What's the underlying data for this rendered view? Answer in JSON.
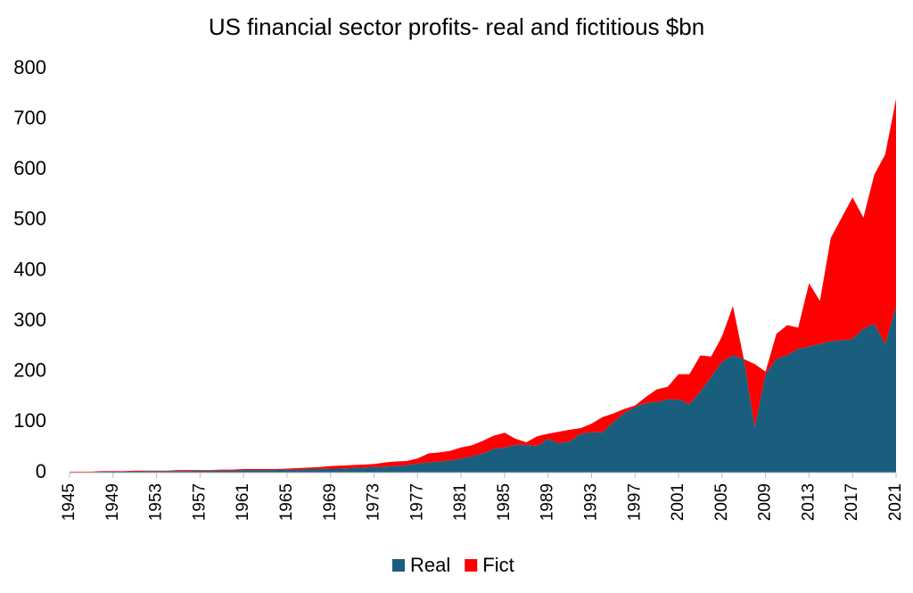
{
  "chart_data": {
    "type": "stacked-area",
    "title": "US financial sector profits- real and fictitious $bn",
    "x": [
      1945,
      1946,
      1947,
      1948,
      1949,
      1950,
      1951,
      1952,
      1953,
      1954,
      1955,
      1956,
      1957,
      1958,
      1959,
      1960,
      1961,
      1962,
      1963,
      1964,
      1965,
      1966,
      1967,
      1968,
      1969,
      1970,
      1971,
      1972,
      1973,
      1974,
      1975,
      1976,
      1977,
      1978,
      1979,
      1980,
      1981,
      1982,
      1983,
      1984,
      1985,
      1986,
      1987,
      1988,
      1989,
      1990,
      1991,
      1992,
      1993,
      1994,
      1995,
      1996,
      1997,
      1998,
      1999,
      2000,
      2001,
      2002,
      2003,
      2004,
      2005,
      2006,
      2007,
      2008,
      2009,
      2010,
      2011,
      2012,
      2013,
      2014,
      2015,
      2016,
      2017,
      2018,
      2019,
      2020,
      2021
    ],
    "series": [
      {
        "name": "Real",
        "color": "#1a5e7e",
        "values": [
          1,
          1,
          1,
          2,
          2,
          2,
          2,
          3,
          3,
          3,
          3,
          3,
          4,
          4,
          4,
          4,
          5,
          5,
          5,
          5,
          6,
          6,
          7,
          7,
          8,
          8,
          9,
          10,
          11,
          12,
          13,
          15,
          18,
          20,
          22,
          24,
          28,
          32,
          38,
          47,
          50,
          55,
          55,
          53,
          67,
          58,
          62,
          77,
          80,
          80,
          100,
          118,
          130,
          138,
          140,
          145,
          145,
          136,
          160,
          190,
          220,
          232,
          225,
          90,
          195,
          225,
          233,
          245,
          250,
          255,
          260,
          262,
          265,
          285,
          295,
          255,
          330
        ]
      },
      {
        "name": "Fict",
        "color": "#ff0000",
        "values": [
          1,
          1,
          1,
          1,
          1,
          1,
          2,
          1,
          1,
          1,
          2,
          2,
          1,
          1,
          2,
          2,
          2,
          2,
          2,
          2,
          2,
          3,
          3,
          4,
          5,
          6,
          6,
          6,
          6,
          8,
          9,
          8,
          10,
          18,
          18,
          19,
          22,
          22,
          25,
          26,
          29,
          12,
          5,
          19,
          10,
          23,
          23,
          11,
          17,
          30,
          17,
          8,
          3,
          12,
          25,
          25,
          50,
          59,
          72,
          40,
          50,
          98,
          0,
          125,
          5,
          50,
          59,
          42,
          125,
          85,
          205,
          243,
          280,
          220,
          295,
          375,
          410
        ]
      }
    ],
    "xlim": [
      1945,
      2021
    ],
    "xticks": [
      1945,
      1949,
      1953,
      1957,
      1961,
      1965,
      1969,
      1973,
      1977,
      1981,
      1985,
      1989,
      1993,
      1997,
      2001,
      2005,
      2009,
      2013,
      2017,
      2021
    ],
    "ylim": [
      0,
      800
    ],
    "yticks": [
      0,
      100,
      200,
      300,
      400,
      500,
      600,
      700,
      800
    ],
    "grid": false,
    "legend": "bottom"
  }
}
